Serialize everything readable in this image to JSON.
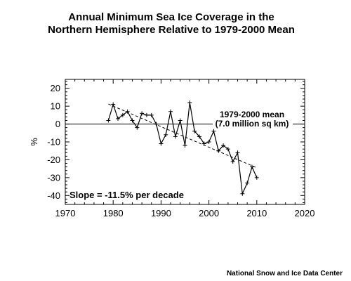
{
  "chart_data": {
    "type": "line",
    "title_lines": [
      "Annual Minimum Sea Ice Coverage in the",
      "Northern Hemisphere Relative to 1979-2000 Mean"
    ],
    "xlabel": "",
    "ylabel": "%",
    "xlim": [
      1970,
      2020
    ],
    "ylim": [
      -45,
      25
    ],
    "x_ticks": [
      1970,
      1980,
      1990,
      2000,
      2010,
      2020
    ],
    "y_ticks": [
      20,
      10,
      0,
      -10,
      -20,
      -30,
      -40
    ],
    "series": [
      {
        "x": [
          1979,
          1980,
          1981,
          1982,
          1983,
          1984,
          1985,
          1986,
          1987,
          1988,
          1989,
          1990,
          1991,
          1992,
          1993,
          1994,
          1995,
          1996,
          1997,
          1998,
          1999,
          2000,
          2001,
          2002,
          2003,
          2004,
          2005,
          2006,
          2007,
          2008,
          2009,
          2010
        ],
        "y": [
          2,
          11,
          3,
          5,
          7,
          2,
          -2,
          6,
          5,
          5,
          0,
          -11,
          -6,
          7,
          -7,
          2,
          -12,
          12,
          -4,
          -7,
          -11,
          -10,
          -4,
          -15,
          -12,
          -14,
          -21,
          -16,
          -39,
          -33,
          -24,
          -30
        ]
      }
    ],
    "reference_line": {
      "y": 0,
      "label_lines": [
        "1979-2000 mean",
        "(7.0 million sq km)"
      ]
    },
    "trend_line": {
      "x": [
        1979,
        2010
      ],
      "y": [
        11.2,
        -24.5
      ],
      "label": "Slope = -11.5% per decade"
    },
    "grid": false,
    "legend": "none"
  },
  "credit": "National Snow and Ice Data Center"
}
